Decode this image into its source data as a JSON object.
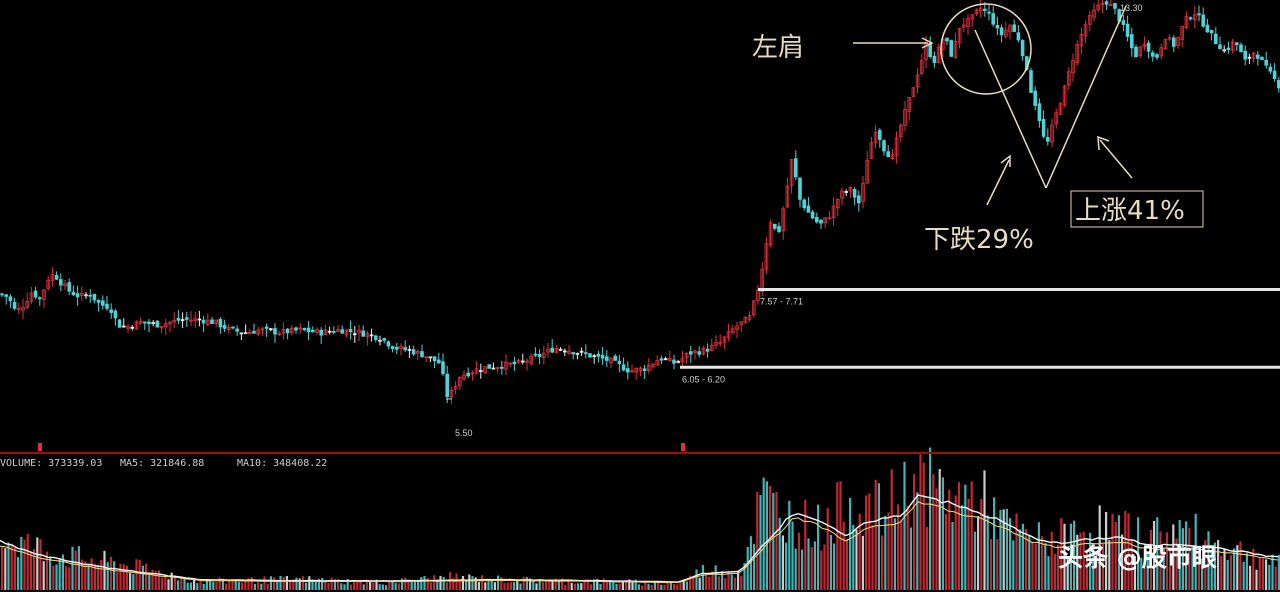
{
  "chart_data": {
    "type": "candlestick",
    "price_panel": {
      "y_range": [
        4.6,
        13.3
      ],
      "marked_low": "5.50",
      "marked_high": "13.30",
      "support_bands": [
        {
          "label": "7.57 - 7.71",
          "value": 7.64
        },
        {
          "label": "6.05 - 6.20",
          "value": 6.12
        }
      ],
      "close_path": [
        [
          0,
          7.55
        ],
        [
          8,
          7.5
        ],
        [
          16,
          7.2
        ],
        [
          24,
          7.35
        ],
        [
          32,
          7.6
        ],
        [
          40,
          7.45
        ],
        [
          48,
          7.85
        ],
        [
          54,
          7.95
        ],
        [
          62,
          7.75
        ],
        [
          70,
          7.6
        ],
        [
          80,
          7.5
        ],
        [
          90,
          7.55
        ],
        [
          100,
          7.35
        ],
        [
          110,
          7.3
        ],
        [
          118,
          6.95
        ],
        [
          126,
          6.9
        ],
        [
          140,
          7.0
        ],
        [
          160,
          6.95
        ],
        [
          180,
          7.05
        ],
        [
          200,
          7.05
        ],
        [
          215,
          7.0
        ],
        [
          230,
          6.85
        ],
        [
          245,
          6.8
        ],
        [
          260,
          6.85
        ],
        [
          280,
          6.8
        ],
        [
          300,
          6.85
        ],
        [
          320,
          6.8
        ],
        [
          340,
          6.85
        ],
        [
          360,
          6.8
        ],
        [
          380,
          6.7
        ],
        [
          395,
          6.5
        ],
        [
          410,
          6.45
        ],
        [
          425,
          6.35
        ],
        [
          440,
          6.2
        ],
        [
          448,
          5.5
        ],
        [
          460,
          5.95
        ],
        [
          480,
          6.1
        ],
        [
          500,
          6.15
        ],
        [
          520,
          6.2
        ],
        [
          540,
          6.35
        ],
        [
          555,
          6.5
        ],
        [
          570,
          6.45
        ],
        [
          590,
          6.35
        ],
        [
          610,
          6.25
        ],
        [
          630,
          6.05
        ],
        [
          645,
          6.1
        ],
        [
          660,
          6.3
        ],
        [
          675,
          6.2
        ],
        [
          690,
          6.4
        ],
        [
          705,
          6.45
        ],
        [
          720,
          6.6
        ],
        [
          735,
          6.9
        ],
        [
          750,
          7.1
        ],
        [
          760,
          7.8
        ],
        [
          770,
          9.0
        ],
        [
          778,
          8.7
        ],
        [
          786,
          9.5
        ],
        [
          792,
          10.2
        ],
        [
          800,
          9.4
        ],
        [
          810,
          9.1
        ],
        [
          820,
          8.9
        ],
        [
          830,
          9.1
        ],
        [
          840,
          9.5
        ],
        [
          850,
          9.6
        ],
        [
          860,
          9.3
        ],
        [
          868,
          10.3
        ],
        [
          876,
          10.8
        ],
        [
          884,
          10.4
        ],
        [
          892,
          10.2
        ],
        [
          900,
          10.8
        ],
        [
          910,
          11.4
        ],
        [
          918,
          11.9
        ],
        [
          926,
          12.4
        ],
        [
          934,
          12.1
        ],
        [
          944,
          12.6
        ],
        [
          952,
          12.2
        ],
        [
          960,
          12.8
        ],
        [
          970,
          12.9
        ],
        [
          980,
          13.15
        ],
        [
          990,
          13.0
        ],
        [
          1000,
          12.6
        ],
        [
          1010,
          12.8
        ],
        [
          1020,
          12.5
        ],
        [
          1030,
          11.6
        ],
        [
          1038,
          11.1
        ],
        [
          1046,
          10.4
        ],
        [
          1055,
          11.0
        ],
        [
          1065,
          11.6
        ],
        [
          1075,
          12.3
        ],
        [
          1085,
          12.8
        ],
        [
          1095,
          13.1
        ],
        [
          1105,
          13.3
        ],
        [
          1115,
          13.1
        ],
        [
          1125,
          12.7
        ],
        [
          1135,
          12.2
        ],
        [
          1145,
          12.5
        ],
        [
          1155,
          12.1
        ],
        [
          1165,
          12.6
        ],
        [
          1175,
          12.4
        ],
        [
          1185,
          12.9
        ],
        [
          1195,
          13.05
        ],
        [
          1205,
          12.8
        ],
        [
          1215,
          12.5
        ],
        [
          1225,
          12.3
        ],
        [
          1235,
          12.5
        ],
        [
          1245,
          12.1
        ],
        [
          1255,
          12.3
        ],
        [
          1265,
          12.0
        ],
        [
          1280,
          11.6
        ]
      ]
    },
    "volume_panel": {
      "label": "VOLUME: 373339.03",
      "ma5_label": "MA5: 321846.88",
      "ma10_label": "MA10: 348408.22",
      "y_range": [
        0,
        520000
      ],
      "volume_path": [
        [
          0,
          250000
        ],
        [
          60,
          160000
        ],
        [
          120,
          120000
        ],
        [
          200,
          40000
        ],
        [
          300,
          50000
        ],
        [
          380,
          35000
        ],
        [
          450,
          60000
        ],
        [
          520,
          45000
        ],
        [
          600,
          40000
        ],
        [
          680,
          30000
        ],
        [
          700,
          90000
        ],
        [
          740,
          90000
        ],
        [
          760,
          430000
        ],
        [
          790,
          330000
        ],
        [
          820,
          290000
        ],
        [
          850,
          420000
        ],
        [
          880,
          360000
        ],
        [
          915,
          510000
        ],
        [
          950,
          430000
        ],
        [
          980,
          420000
        ],
        [
          1010,
          270000
        ],
        [
          1040,
          230000
        ],
        [
          1070,
          250000
        ],
        [
          1100,
          300000
        ],
        [
          1140,
          250000
        ],
        [
          1180,
          280000
        ],
        [
          1220,
          210000
        ],
        [
          1280,
          120000
        ]
      ],
      "ma_path": [
        [
          0,
          210000
        ],
        [
          40,
          150000
        ],
        [
          100,
          100000
        ],
        [
          200,
          45000
        ],
        [
          300,
          40000
        ],
        [
          400,
          40000
        ],
        [
          500,
          45000
        ],
        [
          600,
          40000
        ],
        [
          680,
          35000
        ],
        [
          700,
          70000
        ],
        [
          740,
          80000
        ],
        [
          770,
          230000
        ],
        [
          795,
          340000
        ],
        [
          820,
          300000
        ],
        [
          845,
          230000
        ],
        [
          870,
          300000
        ],
        [
          900,
          320000
        ],
        [
          920,
          420000
        ],
        [
          945,
          380000
        ],
        [
          975,
          340000
        ],
        [
          1000,
          300000
        ],
        [
          1030,
          230000
        ],
        [
          1060,
          200000
        ],
        [
          1090,
          220000
        ],
        [
          1120,
          230000
        ],
        [
          1150,
          190000
        ],
        [
          1180,
          200000
        ],
        [
          1220,
          180000
        ],
        [
          1280,
          140000
        ]
      ]
    }
  },
  "annotations": {
    "left_shoulder": "左肩",
    "drop": "下跌29%",
    "rise": "上涨41%"
  },
  "watermark": "头条 @股市眼",
  "colors": {
    "up": "#e0303a",
    "down": "#4fd3d6",
    "neutral": "#f0f0f0",
    "annotation": "#e8dcc0",
    "support_line": "#e6e6e6",
    "divider": "#9a1010"
  }
}
